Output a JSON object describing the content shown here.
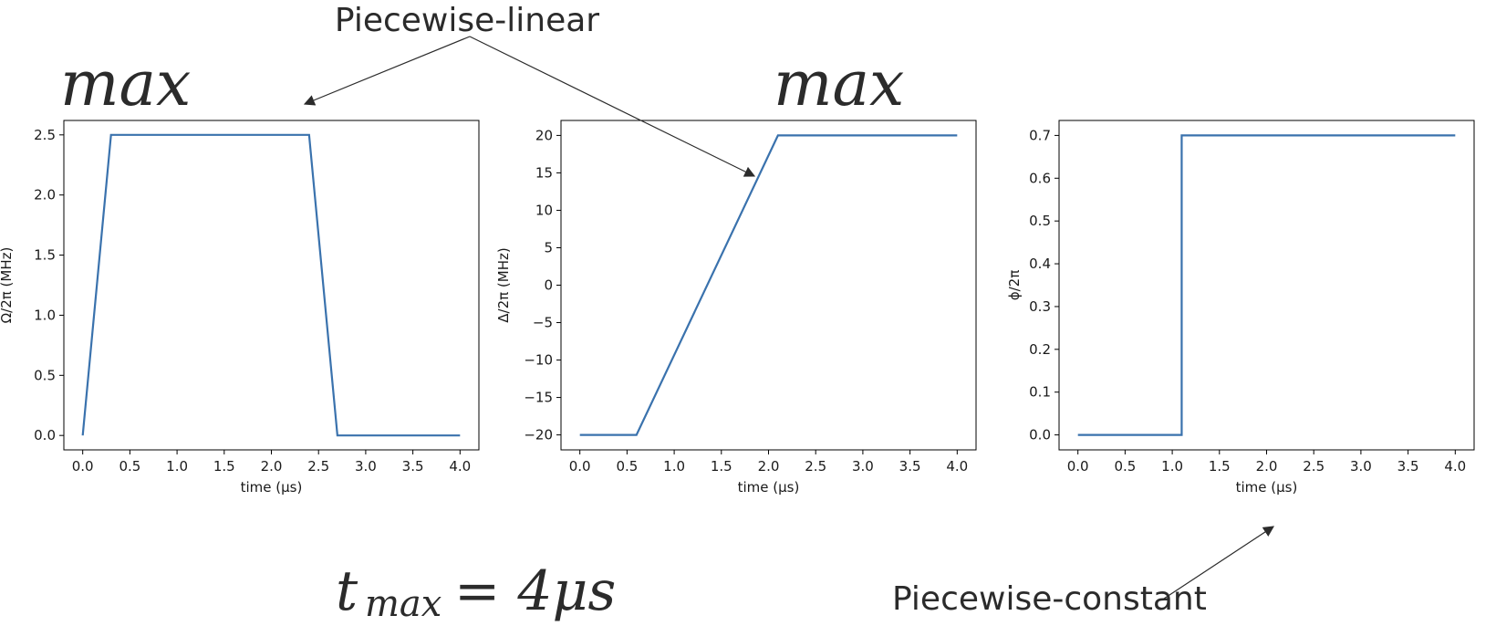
{
  "annotations": {
    "top_label": "Piecewise-linear",
    "bottom_label": "Piecewise-constant",
    "omega_max_prefix": "max",
    "delta_max_prefix": "max",
    "tmax_text": "t",
    "tmax_sub": "max",
    "tmax_rhs": "= 4μs"
  },
  "colors": {
    "line": "#3a72ad",
    "text": "#2b2b2b",
    "axis": "#000000"
  },
  "chart_data": [
    {
      "type": "line",
      "xlabel": "time (μs)",
      "ylabel": "Ω/2π (MHz)",
      "xlim": [
        -0.2,
        4.2
      ],
      "ylim": [
        -0.12,
        2.62
      ],
      "xticks": [
        0.0,
        0.5,
        1.0,
        1.5,
        2.0,
        2.5,
        3.0,
        3.5,
        4.0
      ],
      "xtick_labels": [
        "0.0",
        "0.5",
        "1.0",
        "1.5",
        "2.0",
        "2.5",
        "3.0",
        "3.5",
        "4.0"
      ],
      "yticks": [
        0.0,
        0.5,
        1.0,
        1.5,
        2.0,
        2.5
      ],
      "ytick_labels": [
        "0.0",
        "0.5",
        "1.0",
        "1.5",
        "2.0",
        "2.5"
      ],
      "step": false,
      "x": [
        0.0,
        0.3,
        2.4,
        2.7,
        4.0
      ],
      "y": [
        0.0,
        2.5,
        2.5,
        0.0,
        0.0
      ]
    },
    {
      "type": "line",
      "xlabel": "time (μs)",
      "ylabel": "Δ/2π (MHz)",
      "xlim": [
        -0.2,
        4.2
      ],
      "ylim": [
        -22,
        22
      ],
      "xticks": [
        0.0,
        0.5,
        1.0,
        1.5,
        2.0,
        2.5,
        3.0,
        3.5,
        4.0
      ],
      "xtick_labels": [
        "0.0",
        "0.5",
        "1.0",
        "1.5",
        "2.0",
        "2.5",
        "3.0",
        "3.5",
        "4.0"
      ],
      "yticks": [
        -20,
        -15,
        -10,
        -5,
        0,
        5,
        10,
        15,
        20
      ],
      "ytick_labels": [
        "−20",
        "−15",
        "−10",
        "−5",
        "0",
        "5",
        "10",
        "15",
        "20"
      ],
      "step": false,
      "x": [
        0.0,
        0.6,
        2.1,
        4.0
      ],
      "y": [
        -20,
        -20,
        20,
        20
      ]
    },
    {
      "type": "line",
      "xlabel": "time (μs)",
      "ylabel": "ϕ/2π",
      "xlim": [
        -0.2,
        4.2
      ],
      "ylim": [
        -0.035,
        0.735
      ],
      "xticks": [
        0.0,
        0.5,
        1.0,
        1.5,
        2.0,
        2.5,
        3.0,
        3.5,
        4.0
      ],
      "xtick_labels": [
        "0.0",
        "0.5",
        "1.0",
        "1.5",
        "2.0",
        "2.5",
        "3.0",
        "3.5",
        "4.0"
      ],
      "yticks": [
        0.0,
        0.1,
        0.2,
        0.3,
        0.4,
        0.5,
        0.6,
        0.7
      ],
      "ytick_labels": [
        "0.0",
        "0.1",
        "0.2",
        "0.3",
        "0.4",
        "0.5",
        "0.6",
        "0.7"
      ],
      "step": true,
      "x": [
        0.0,
        1.1,
        1.1,
        4.0
      ],
      "y": [
        0.0,
        0.0,
        0.7,
        0.7
      ]
    }
  ]
}
